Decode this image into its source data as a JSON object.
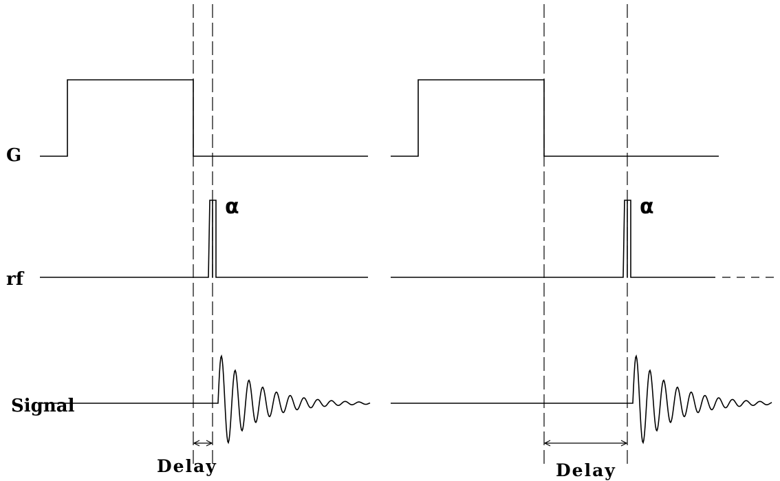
{
  "labels": {
    "gradient": "G",
    "rf": "rf",
    "signal": "Signal",
    "flip_angle": "α",
    "delay": "Delay"
  },
  "panels": [
    {
      "id": "short-delay",
      "flip_label": "α",
      "delay_label": "Delay"
    },
    {
      "id": "long-delay",
      "flip_label": "α",
      "delay_label": "Delay"
    }
  ]
}
